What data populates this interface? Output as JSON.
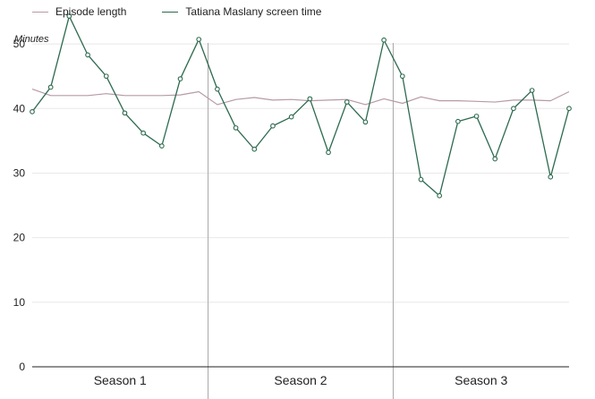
{
  "chart_data": {
    "type": "line",
    "ylabel": "Minutes",
    "ylim": [
      0,
      55
    ],
    "yticks": [
      0,
      10,
      20,
      30,
      40,
      50
    ],
    "grid": true,
    "legend": "top-left",
    "seasons": [
      "Season 1",
      "Season 2",
      "Season 3"
    ],
    "episodes_per_season": [
      10,
      10,
      10
    ],
    "x": [
      1,
      2,
      3,
      4,
      5,
      6,
      7,
      8,
      9,
      10,
      11,
      12,
      13,
      14,
      15,
      16,
      17,
      18,
      19,
      20,
      21,
      22,
      23,
      24,
      25,
      26,
      27,
      28,
      29,
      30
    ],
    "series": [
      {
        "name": "Episode length",
        "color": "#b79aa6",
        "markers": false,
        "values": [
          43.0,
          42.0,
          42.0,
          42.0,
          42.3,
          42.0,
          42.0,
          42.0,
          42.1,
          42.6,
          40.6,
          41.4,
          41.7,
          41.3,
          41.4,
          41.2,
          41.3,
          41.4,
          40.6,
          41.5,
          40.8,
          41.8,
          41.2,
          41.2,
          41.1,
          41.0,
          41.3,
          41.3,
          41.2,
          42.6
        ]
      },
      {
        "name": "Tatiana Maslany screen time",
        "color": "#2d6a4f",
        "markers": true,
        "values": [
          39.5,
          43.3,
          54.3,
          48.3,
          45.0,
          39.3,
          36.2,
          34.2,
          44.6,
          50.7,
          43.0,
          37.0,
          33.7,
          37.3,
          38.7,
          41.5,
          33.2,
          41.0,
          37.9,
          50.6,
          45.0,
          29.0,
          26.5,
          38.0,
          38.8,
          32.2,
          40.0,
          42.8,
          29.4,
          40.0
        ]
      }
    ]
  }
}
